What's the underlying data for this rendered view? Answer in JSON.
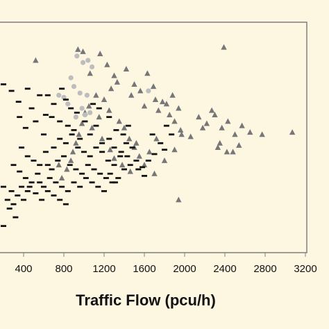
{
  "chart_data": {
    "type": "scatter",
    "title": "",
    "xlabel": "Traffic Flow (pcu/h)",
    "ylabel": "",
    "xlim": [
      200,
      3200
    ],
    "ylim": [
      0,
      100
    ],
    "x_ticks": [
      400,
      800,
      1200,
      1600,
      2000,
      2400,
      2800,
      3200
    ],
    "x_tick_labels": [
      "400",
      "800",
      "1200",
      "1600",
      "2000",
      "2400",
      "2800",
      "3200"
    ],
    "grid": false,
    "plot_background": "#fdf7e2",
    "colors": {
      "dash_marker": "#111111",
      "triangle_marker": "#777777",
      "circle_marker": "#bdbdbd",
      "frame": "#7f7f7f"
    },
    "series": [
      {
        "marker": "triangle",
        "color": "#777777",
        "points": [
          [
            520,
            86
          ],
          [
            940,
            91
          ],
          [
            990,
            90
          ],
          [
            1060,
            80
          ],
          [
            1160,
            89
          ],
          [
            1230,
            84
          ],
          [
            1300,
            79
          ],
          [
            1330,
            76
          ],
          [
            1420,
            82
          ],
          [
            1470,
            70
          ],
          [
            1500,
            75
          ],
          [
            1560,
            72
          ],
          [
            1600,
            65
          ],
          [
            1630,
            80
          ],
          [
            1690,
            74
          ],
          [
            1710,
            68
          ],
          [
            1740,
            63
          ],
          [
            1780,
            67
          ],
          [
            1820,
            66
          ],
          [
            1850,
            61
          ],
          [
            1880,
            70
          ],
          [
            1900,
            58
          ],
          [
            1940,
            64
          ],
          [
            1970,
            52
          ],
          [
            2060,
            51
          ],
          [
            2140,
            60
          ],
          [
            2180,
            55
          ],
          [
            2220,
            57
          ],
          [
            2270,
            63
          ],
          [
            2300,
            61
          ],
          [
            2350,
            48
          ],
          [
            2370,
            55
          ],
          [
            2390,
            92
          ],
          [
            2430,
            58
          ],
          [
            2480,
            44
          ],
          [
            2500,
            52
          ],
          [
            2540,
            47
          ],
          [
            2570,
            56
          ],
          [
            2650,
            53
          ],
          [
            2770,
            52
          ],
          [
            3070,
            53
          ],
          [
            2330,
            46
          ],
          [
            2420,
            44
          ],
          [
            1270,
            73
          ],
          [
            1200,
            68
          ],
          [
            1120,
            70
          ],
          [
            1050,
            65
          ],
          [
            1010,
            62
          ],
          [
            980,
            57
          ],
          [
            950,
            52
          ],
          [
            920,
            48
          ],
          [
            890,
            44
          ],
          [
            870,
            40
          ],
          [
            830,
            36
          ],
          [
            780,
            32
          ],
          [
            750,
            38
          ],
          [
            1150,
            60
          ],
          [
            1250,
            63
          ],
          [
            1350,
            58
          ],
          [
            1400,
            55
          ],
          [
            1450,
            50
          ],
          [
            1500,
            46
          ],
          [
            1550,
            42
          ],
          [
            1600,
            38
          ],
          [
            1700,
            34
          ],
          [
            1800,
            40
          ],
          [
            1080,
            55
          ],
          [
            1180,
            50
          ],
          [
            1260,
            45
          ],
          [
            1300,
            41
          ],
          [
            1380,
            38
          ],
          [
            1460,
            35
          ],
          [
            1520,
            48
          ],
          [
            1650,
            44
          ],
          [
            1720,
            50
          ],
          [
            1900,
            45
          ],
          [
            1960,
            54
          ],
          [
            1940,
            22
          ]
        ]
      },
      {
        "marker": "circle",
        "color": "#bdbdbd",
        "points": [
          [
            930,
            88
          ],
          [
            990,
            85
          ],
          [
            1040,
            86
          ],
          [
            1080,
            83
          ],
          [
            870,
            78
          ],
          [
            900,
            74
          ],
          [
            960,
            71
          ],
          [
            1030,
            70
          ],
          [
            800,
            69
          ],
          [
            840,
            66
          ],
          [
            980,
            64
          ],
          [
            1010,
            61
          ],
          [
            1060,
            62
          ],
          [
            920,
            60
          ],
          [
            1640,
            72
          ],
          [
            750,
            70
          ]
        ]
      },
      {
        "marker": "dash",
        "color": "#111111",
        "points": [
          [
            200,
            75
          ],
          [
            280,
            72
          ],
          [
            440,
            73
          ],
          [
            640,
            70
          ],
          [
            780,
            73
          ],
          [
            350,
            67
          ],
          [
            480,
            64
          ],
          [
            560,
            70
          ],
          [
            620,
            61
          ],
          [
            700,
            66
          ],
          [
            820,
            68
          ],
          [
            870,
            64
          ],
          [
            930,
            62
          ],
          [
            360,
            60
          ],
          [
            420,
            55
          ],
          [
            520,
            58
          ],
          [
            600,
            52
          ],
          [
            680,
            60
          ],
          [
            760,
            58
          ],
          [
            840,
            56
          ],
          [
            900,
            54
          ],
          [
            960,
            50
          ],
          [
            1010,
            58
          ],
          [
            1060,
            52
          ],
          [
            1120,
            56
          ],
          [
            1180,
            48
          ],
          [
            1250,
            50
          ],
          [
            1300,
            46
          ],
          [
            1370,
            44
          ],
          [
            1430,
            42
          ],
          [
            1480,
            46
          ],
          [
            1520,
            40
          ],
          [
            1580,
            37
          ],
          [
            1640,
            40
          ],
          [
            1700,
            43
          ],
          [
            1800,
            45
          ],
          [
            1870,
            52
          ],
          [
            380,
            46
          ],
          [
            440,
            42
          ],
          [
            500,
            40
          ],
          [
            560,
            38
          ],
          [
            620,
            44
          ],
          [
            680,
            36
          ],
          [
            740,
            40
          ],
          [
            800,
            42
          ],
          [
            860,
            38
          ],
          [
            920,
            36
          ],
          [
            980,
            34
          ],
          [
            1040,
            38
          ],
          [
            1100,
            36
          ],
          [
            1160,
            34
          ],
          [
            1220,
            32
          ],
          [
            1280,
            30
          ],
          [
            1340,
            32
          ],
          [
            1400,
            36
          ],
          [
            300,
            38
          ],
          [
            360,
            35
          ],
          [
            420,
            32
          ],
          [
            480,
            30
          ],
          [
            540,
            34
          ],
          [
            600,
            28
          ],
          [
            660,
            32
          ],
          [
            720,
            30
          ],
          [
            780,
            28
          ],
          [
            840,
            26
          ],
          [
            900,
            30
          ],
          [
            960,
            28
          ],
          [
            1020,
            32
          ],
          [
            1080,
            30
          ],
          [
            1140,
            28
          ],
          [
            1200,
            26
          ],
          [
            1260,
            34
          ],
          [
            1310,
            30
          ],
          [
            280,
            26
          ],
          [
            340,
            24
          ],
          [
            400,
            22
          ],
          [
            460,
            28
          ],
          [
            520,
            25
          ],
          [
            580,
            22
          ],
          [
            640,
            26
          ],
          [
            700,
            24
          ],
          [
            760,
            22
          ],
          [
            820,
            20
          ],
          [
            260,
            18
          ],
          [
            320,
            14
          ],
          [
            200,
            28
          ],
          [
            240,
            22
          ],
          [
            300,
            20
          ],
          [
            380,
            28
          ],
          [
            440,
            26
          ],
          [
            200,
            10
          ],
          [
            560,
            30
          ],
          [
            640,
            38
          ],
          [
            700,
            46
          ],
          [
            760,
            50
          ],
          [
            820,
            48
          ],
          [
            880,
            52
          ],
          [
            940,
            46
          ],
          [
            1000,
            44
          ],
          [
            1060,
            42
          ],
          [
            1120,
            46
          ],
          [
            1180,
            44
          ],
          [
            1240,
            40
          ],
          [
            1300,
            38
          ],
          [
            1360,
            42
          ],
          [
            1420,
            48
          ],
          [
            1460,
            38
          ],
          [
            1540,
            36
          ],
          [
            1600,
            33
          ],
          [
            1680,
            52
          ],
          [
            1760,
            48
          ],
          [
            1820,
            56
          ],
          [
            1250,
            60
          ],
          [
            1320,
            54
          ],
          [
            1390,
            52
          ],
          [
            1440,
            56
          ],
          [
            1150,
            64
          ],
          [
            1090,
            66
          ]
        ]
      }
    ]
  }
}
